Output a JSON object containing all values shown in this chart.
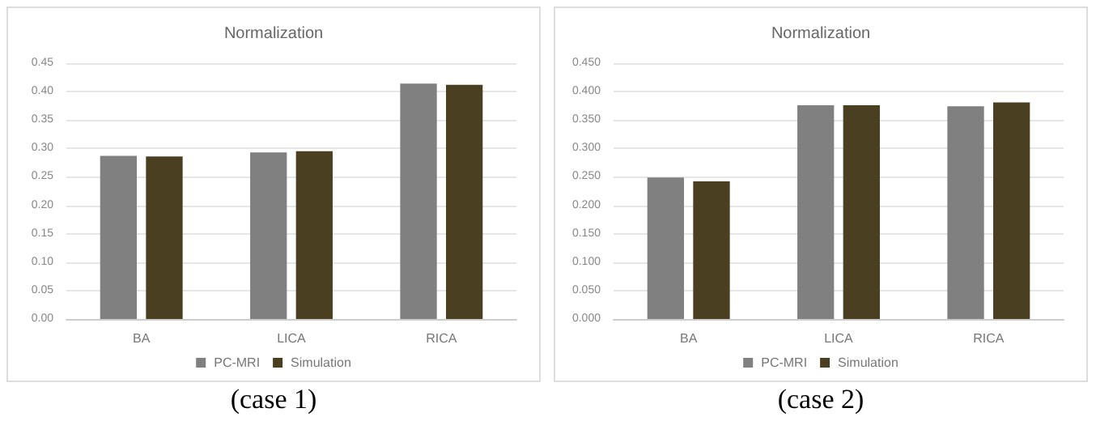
{
  "chart_data": [
    {
      "type": "bar",
      "title": "Normalization",
      "categories": [
        "BA",
        "LICA",
        "RICA"
      ],
      "series": [
        {
          "name": "PC-MRI",
          "color": "#808080",
          "values": [
            0.287,
            0.293,
            0.414
          ]
        },
        {
          "name": "Simulation",
          "color": "#4b3f22",
          "values": [
            0.286,
            0.295,
            0.412
          ]
        }
      ],
      "ylim": [
        0,
        0.45
      ],
      "yticks": [
        {
          "value": 0,
          "label": "0.00"
        },
        {
          "value": 0.05,
          "label": "0.05"
        },
        {
          "value": 0.1,
          "label": "0.10"
        },
        {
          "value": 0.15,
          "label": "0.15"
        },
        {
          "value": 0.2,
          "label": "0.20"
        },
        {
          "value": 0.25,
          "label": "0.25"
        },
        {
          "value": 0.3,
          "label": "0.30"
        },
        {
          "value": 0.35,
          "label": "0.35"
        },
        {
          "value": 0.4,
          "label": "0.40"
        },
        {
          "value": 0.45,
          "label": "0.45"
        }
      ],
      "grid": "y",
      "legend": "bottom",
      "annotations": [
        "(case 1)"
      ]
    },
    {
      "type": "bar",
      "title": "Normalization",
      "categories": [
        "BA",
        "LICA",
        "RICA"
      ],
      "series": [
        {
          "name": "PC-MRI",
          "color": "#808080",
          "values": [
            0.249,
            0.376,
            0.374
          ]
        },
        {
          "name": "Simulation",
          "color": "#4b3f22",
          "values": [
            0.242,
            0.376,
            0.381
          ]
        }
      ],
      "ylim": [
        0,
        0.45
      ],
      "yticks": [
        {
          "value": 0,
          "label": "0.000"
        },
        {
          "value": 0.05,
          "label": "0.050"
        },
        {
          "value": 0.1,
          "label": "0.100"
        },
        {
          "value": 0.15,
          "label": "0.150"
        },
        {
          "value": 0.2,
          "label": "0.200"
        },
        {
          "value": 0.25,
          "label": "0.250"
        },
        {
          "value": 0.3,
          "label": "0.300"
        },
        {
          "value": 0.35,
          "label": "0.350"
        },
        {
          "value": 0.4,
          "label": "0.400"
        },
        {
          "value": 0.45,
          "label": "0.450"
        }
      ],
      "grid": "y",
      "legend": "bottom",
      "annotations": [
        "(case 2)"
      ]
    }
  ]
}
